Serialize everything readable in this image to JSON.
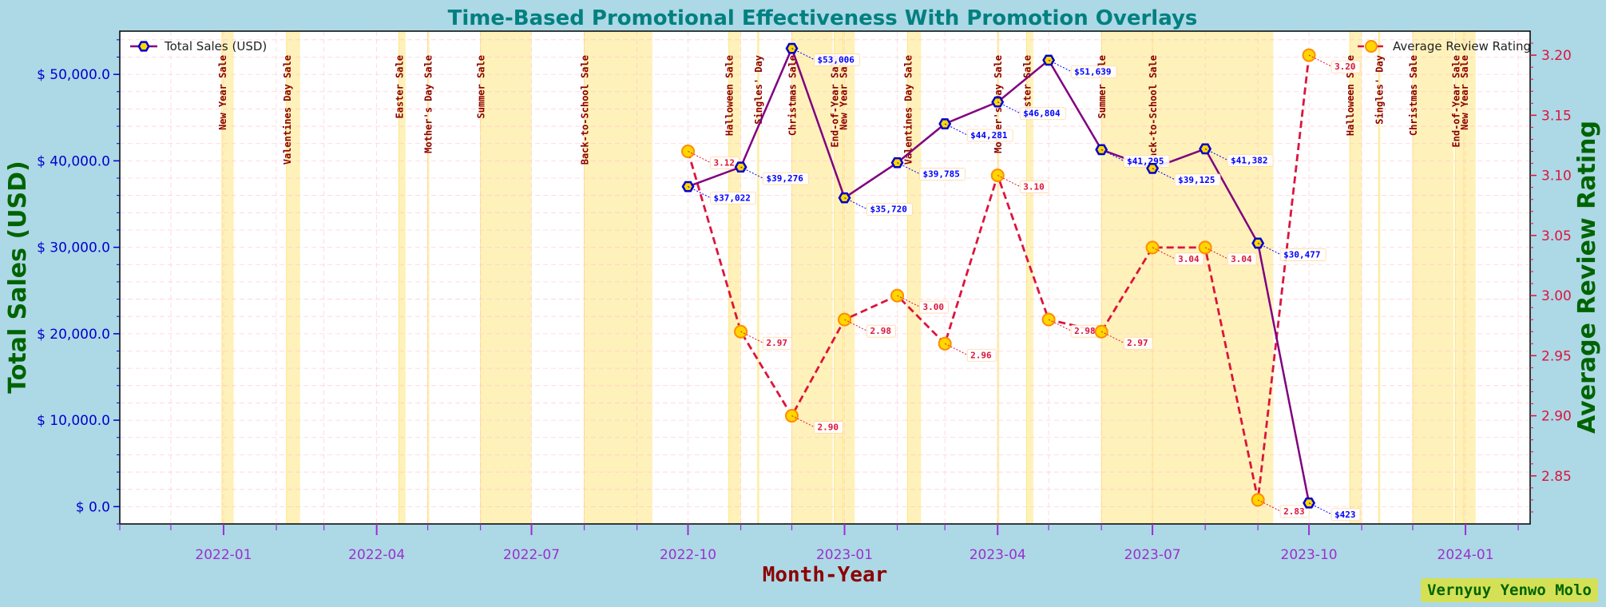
{
  "chart_data": {
    "type": "line",
    "title": "Time-Based Promotional Effectiveness With Promotion Overlays",
    "xlabel": "Month-Year",
    "ylabel_left": "Total Sales (USD)",
    "ylabel_right": "Average Review Rating",
    "x_ticks": [
      "2022-01",
      "2022-04",
      "2022-07",
      "2022-10",
      "2023-01",
      "2023-04",
      "2023-07",
      "2023-10",
      "2024-01"
    ],
    "ylim_left": [
      -2000,
      55000
    ],
    "ylim_right": [
      2.81,
      3.22
    ],
    "yticks_left": [
      "$ 0.0",
      "$ 10,000.0",
      "$ 20,000.0",
      "$ 30,000.0",
      "$ 40,000.0",
      "$ 50,000.0"
    ],
    "yticks_right": [
      "2.85",
      "2.90",
      "2.95",
      "3.00",
      "3.05",
      "3.10",
      "3.15",
      "3.20"
    ],
    "grid": true,
    "series": [
      {
        "name": "Total Sales (USD)",
        "axis": "left",
        "color": "#800080",
        "marker_face": "#ffd700",
        "marker_edge": "#0000cd",
        "points": [
          {
            "x": "2022-10-01",
            "y": 37022,
            "label": "$37,022"
          },
          {
            "x": "2022-11-01",
            "y": 39276,
            "label": "$39,276"
          },
          {
            "x": "2022-12-01",
            "y": 53006,
            "label": "$53,006"
          },
          {
            "x": "2023-01-01",
            "y": 35720,
            "label": "$35,720"
          },
          {
            "x": "2023-02-01",
            "y": 39785,
            "label": "$39,785"
          },
          {
            "x": "2023-03-01",
            "y": 44281,
            "label": "$44,281"
          },
          {
            "x": "2023-04-01",
            "y": 46804,
            "label": "$46,804"
          },
          {
            "x": "2023-05-01",
            "y": 51639,
            "label": "$51,639"
          },
          {
            "x": "2023-06-01",
            "y": 41295,
            "label": "$41,295"
          },
          {
            "x": "2023-07-01",
            "y": 39125,
            "label": "$39,125"
          },
          {
            "x": "2023-08-01",
            "y": 41382,
            "label": "$41,382"
          },
          {
            "x": "2023-09-01",
            "y": 30477,
            "label": "$30,477"
          },
          {
            "x": "2023-10-01",
            "y": 423,
            "label": "$423"
          }
        ]
      },
      {
        "name": "Average Review Rating",
        "axis": "right",
        "color": "#dc143c",
        "marker_face": "#ffd700",
        "marker_edge": "#ff8c00",
        "points": [
          {
            "x": "2022-10-01",
            "y": 3.12,
            "label": "3.12"
          },
          {
            "x": "2022-11-01",
            "y": 2.97,
            "label": "2.97"
          },
          {
            "x": "2022-12-01",
            "y": 2.9,
            "label": "2.90"
          },
          {
            "x": "2023-01-01",
            "y": 2.98,
            "label": "2.98"
          },
          {
            "x": "2023-02-01",
            "y": 3.0,
            "label": "3.00"
          },
          {
            "x": "2023-03-01",
            "y": 2.96,
            "label": "2.96"
          },
          {
            "x": "2023-04-01",
            "y": 3.1,
            "label": "3.10"
          },
          {
            "x": "2023-05-01",
            "y": 2.98,
            "label": "2.98"
          },
          {
            "x": "2023-06-01",
            "y": 2.97,
            "label": "2.97"
          },
          {
            "x": "2023-07-01",
            "y": 3.04,
            "label": "3.04"
          },
          {
            "x": "2023-08-01",
            "y": 3.04,
            "label": "3.04"
          },
          {
            "x": "2023-09-01",
            "y": 2.83,
            "label": "2.83"
          },
          {
            "x": "2023-10-01",
            "y": 3.2,
            "label": "3.20"
          }
        ]
      }
    ],
    "promotions": [
      {
        "name": "New Year Sale",
        "start": "2021-12-31",
        "end": "2022-01-07"
      },
      {
        "name": "Valentines Day Sale",
        "start": "2022-02-07",
        "end": "2022-02-15"
      },
      {
        "name": "Mother's Day Sale",
        "start": "2022-05-01",
        "end": "2022-05-02"
      },
      {
        "name": "Easter Sale",
        "start": "2022-04-14",
        "end": "2022-04-18"
      },
      {
        "name": "Summer Sale",
        "start": "2022-06-01",
        "end": "2022-07-01"
      },
      {
        "name": "Back-to-School Sale",
        "start": "2022-08-01",
        "end": "2022-09-10"
      },
      {
        "name": "Halloween Sale",
        "start": "2022-10-25",
        "end": "2022-11-01"
      },
      {
        "name": "Singles' Day",
        "start": "2022-11-11",
        "end": "2022-11-12"
      },
      {
        "name": "Christmas Sale",
        "start": "2022-12-01",
        "end": "2022-12-25"
      },
      {
        "name": "End-of-Year Sale",
        "start": "2022-12-26",
        "end": "2022-12-31"
      },
      {
        "name": "New Year Sale",
        "start": "2022-12-31",
        "end": "2023-01-07"
      },
      {
        "name": "Valentines Day Sale",
        "start": "2023-02-07",
        "end": "2023-02-15"
      },
      {
        "name": "Mother's Day Sale",
        "start": "2023-04-01",
        "end": "2023-04-02"
      },
      {
        "name": "Easter Sale",
        "start": "2023-04-18",
        "end": "2023-04-22"
      },
      {
        "name": "Summer Sale",
        "start": "2023-06-01",
        "end": "2023-07-01"
      },
      {
        "name": "Back-to-School Sale",
        "start": "2023-07-01",
        "end": "2023-09-10"
      },
      {
        "name": "Halloween Sale",
        "start": "2023-10-25",
        "end": "2023-11-01"
      },
      {
        "name": "Singles' Day",
        "start": "2023-11-11",
        "end": "2023-11-12"
      },
      {
        "name": "Christmas Sale",
        "start": "2023-12-01",
        "end": "2023-12-25"
      },
      {
        "name": "End-of-Year Sale",
        "start": "2023-12-26",
        "end": "2023-12-31"
      },
      {
        "name": "New Year Sale",
        "start": "2023-12-31",
        "end": "2024-01-07"
      }
    ],
    "legend_left": "top-left",
    "legend_right": "top-right",
    "colors": {
      "background": "#add8e6",
      "plot_bg": "#ffffff",
      "promo_fill": "#fff0b3",
      "title": "#008080",
      "xlabel": "#8b0000",
      "ylabel": "#006400",
      "left_ticks": "#0000cd",
      "right_ticks": "#dc143c",
      "x_ticks": "#9932cc"
    }
  },
  "signature": "Vernyuy Yenwo Molo"
}
